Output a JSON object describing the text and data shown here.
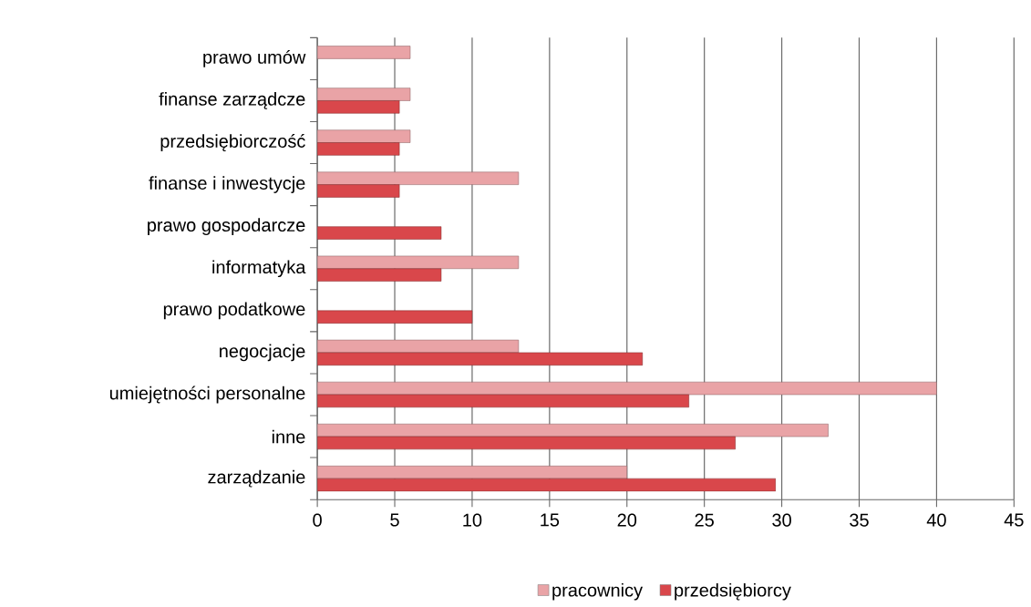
{
  "chart_data": {
    "type": "bar",
    "orientation": "horizontal",
    "categories": [
      "prawo umów",
      "finanse zarządcze",
      "przedsiębiorczość",
      "finanse i inwestycje",
      "prawo gospodarcze",
      "informatyka",
      "prawo podatkowe",
      "negocjacje",
      "umiejętności personalne",
      "inne",
      "zarządzanie"
    ],
    "series": [
      {
        "name": "pracownicy",
        "color": "#e9a3a6",
        "values": [
          6,
          6,
          6,
          13,
          null,
          13,
          null,
          13,
          40,
          33,
          20
        ]
      },
      {
        "name": "przedsiębiorcy",
        "color": "#d9474b",
        "values": [
          null,
          5.3,
          5.3,
          5.3,
          8,
          8,
          10,
          21,
          24,
          27,
          29.6
        ]
      }
    ],
    "xlim": [
      0,
      45
    ],
    "xticks": [
      0,
      5,
      10,
      15,
      20,
      25,
      30,
      35,
      40,
      45
    ],
    "grid": "x",
    "legend": "bottom"
  }
}
